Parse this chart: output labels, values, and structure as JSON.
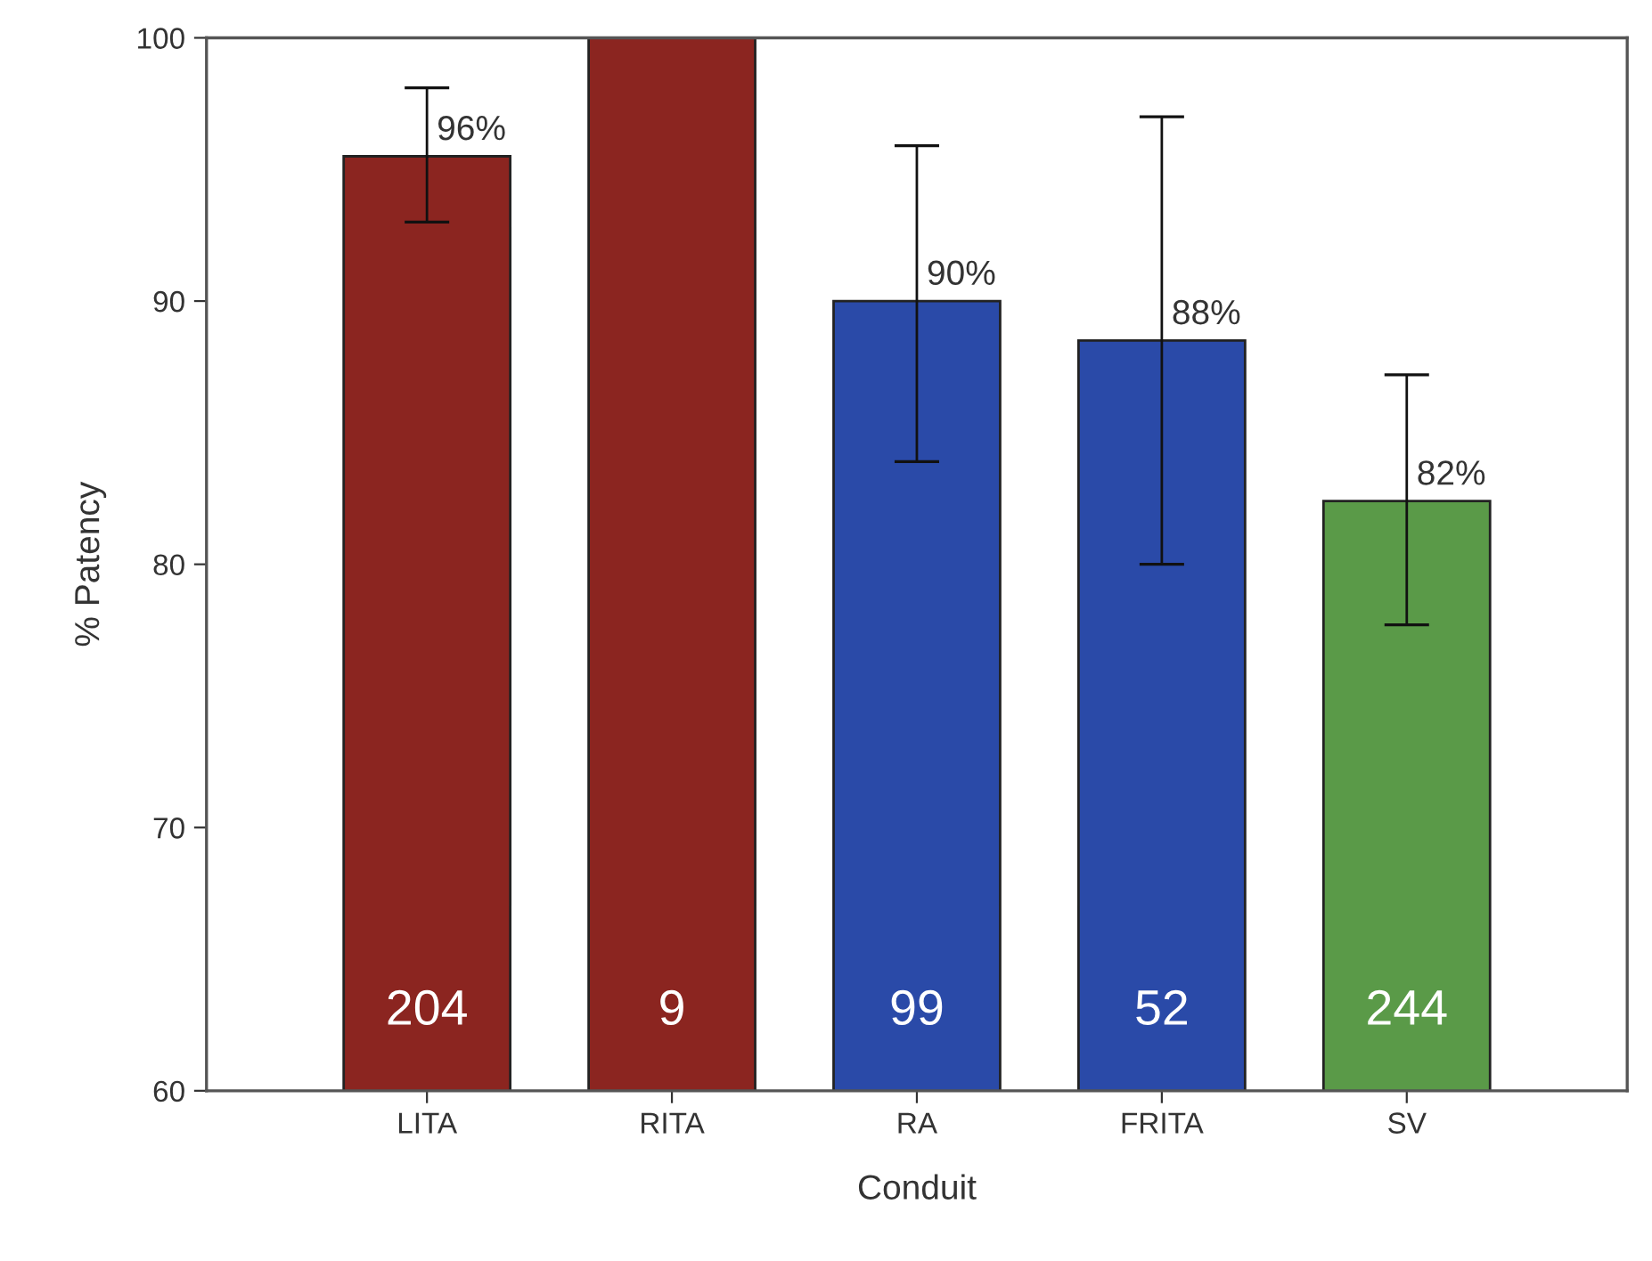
{
  "chart_data": {
    "type": "bar",
    "xlabel": "Conduit",
    "ylabel": "% Patency",
    "categories": [
      "LITA",
      "RITA",
      "RA",
      "FRITA",
      "SV"
    ],
    "values": [
      95.5,
      100,
      90,
      88.5,
      82.4
    ],
    "colors": [
      "#8b2520",
      "#8b2520",
      "#2a4aa8",
      "#2a4aa8",
      "#5a9a48"
    ],
    "errors": [
      [
        93.0,
        98.1
      ],
      null,
      [
        83.9,
        95.9
      ],
      [
        80.0,
        97.0
      ],
      [
        77.7,
        87.2
      ]
    ],
    "value_labels": [
      "96%",
      null,
      "90%",
      "88%",
      "82%"
    ],
    "annotations": [
      "204",
      "9",
      "99",
      "52",
      "244"
    ],
    "ylim": [
      60,
      100
    ],
    "yticks": [
      60,
      70,
      80,
      90,
      100
    ],
    "grid": false
  }
}
